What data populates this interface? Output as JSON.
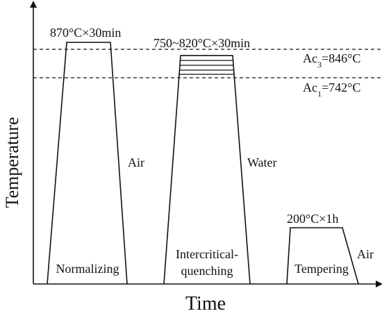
{
  "axes": {
    "y_title": "Temperature",
    "x_title": "Time"
  },
  "reference_lines": {
    "ac3": {
      "prefix": "Ac",
      "sub": "3",
      "suffix": "=846°C"
    },
    "ac1": {
      "prefix": "Ac",
      "sub": "1",
      "suffix": "=742°C"
    }
  },
  "stages": [
    {
      "name": "Normalizing",
      "hold": "870°C×30min",
      "cooling": "Air"
    },
    {
      "name_line1": "Intercritical-",
      "name_line2": "quenching",
      "hold": "750~820°C×30min",
      "cooling": "Water"
    },
    {
      "name": "Tempering",
      "hold": "200°C×1h",
      "cooling": "Air"
    }
  ]
}
